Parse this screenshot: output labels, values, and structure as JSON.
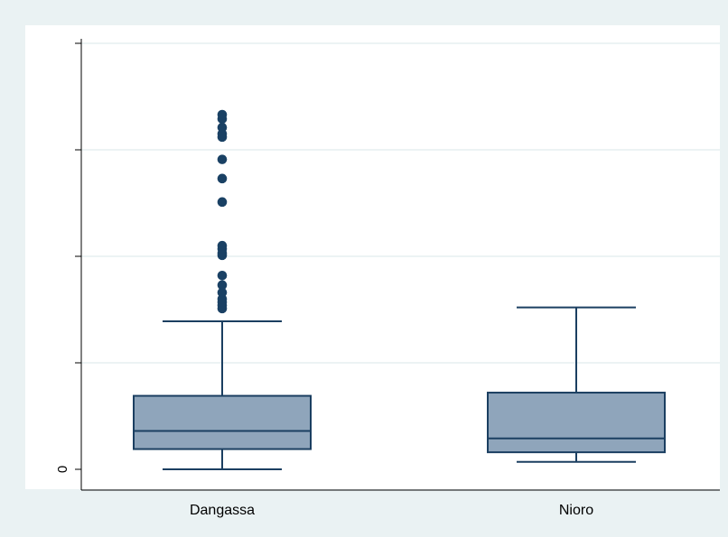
{
  "chart_data": {
    "type": "box",
    "categories": [
      "Dangassa",
      "Nioro"
    ],
    "y_ticks": [
      0,
      1,
      2,
      3,
      4
    ],
    "y_tick_labels": [
      "0",
      "",
      "",
      "",
      ""
    ],
    "ylim": [
      0,
      4.1
    ],
    "grid": true,
    "boxes": [
      {
        "category": "Dangassa",
        "whisker_low": 0.0,
        "q1": 0.19,
        "median": 0.36,
        "q3": 0.69,
        "whisker_high": 1.39,
        "outliers": [
          1.51,
          1.54,
          1.57,
          1.6,
          1.66,
          1.73,
          1.82,
          2.01,
          2.03,
          2.07,
          2.1,
          2.51,
          2.73,
          2.91,
          3.12,
          3.15,
          3.21,
          3.29,
          3.33
        ]
      },
      {
        "category": "Nioro",
        "whisker_low": 0.07,
        "q1": 0.16,
        "median": 0.29,
        "q3": 0.72,
        "whisker_high": 1.52,
        "outliers": []
      }
    ],
    "colors": {
      "box_fill": "#8fa5bb",
      "box_stroke": "#1b3f61",
      "outlier": "#1a4164",
      "grid": "#e6eff1",
      "axis": "#000000",
      "page_bg": "#eaf2f3",
      "plot_bg": "#ffffff"
    }
  }
}
